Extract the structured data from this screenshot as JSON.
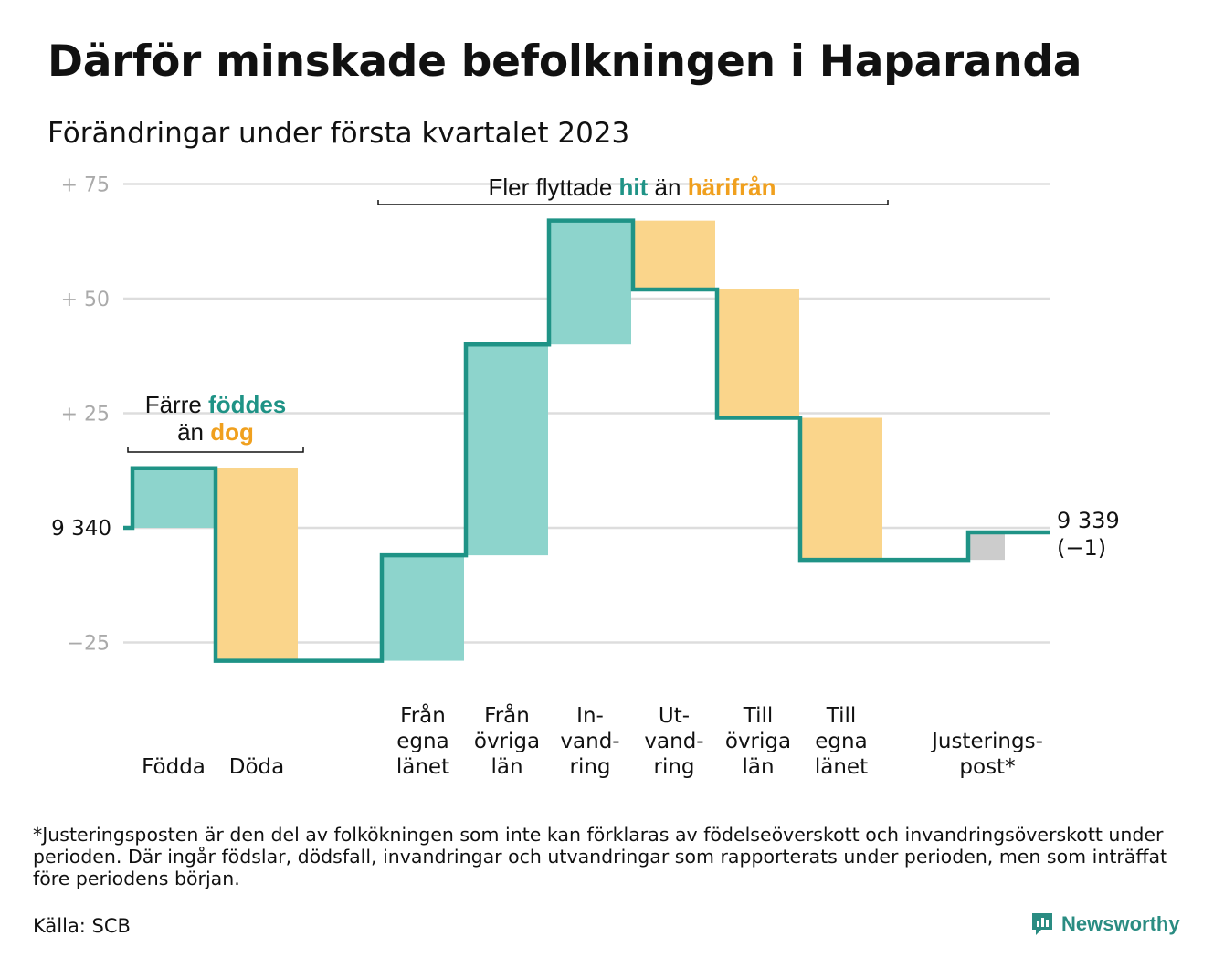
{
  "title": "Därför minskade befolkningen i Haparanda",
  "subtitle": "Förändringar under första kvartalet 2023",
  "chart_data": {
    "type": "waterfall",
    "base_population": 9340,
    "base_label": "9 340",
    "end_label_lines": [
      "9 339",
      "(−1)"
    ],
    "y_ticks": [
      {
        "value": 75,
        "label": "+ 75"
      },
      {
        "value": 50,
        "label": "+ 50"
      },
      {
        "value": 25,
        "label": "+ 25"
      },
      {
        "value": -25,
        "label": "−25"
      }
    ],
    "ylim": [
      -29,
      79
    ],
    "grid": true,
    "categories": [
      {
        "key": "fodda",
        "label_lines": [
          "Födda"
        ],
        "change": 13,
        "kind": "in"
      },
      {
        "key": "doda",
        "label_lines": [
          "Döda"
        ],
        "change": -42,
        "kind": "out"
      },
      {
        "key": "fran_egna_lanet",
        "label_lines": [
          "Från",
          "egna",
          "länet"
        ],
        "change": 23,
        "kind": "in"
      },
      {
        "key": "fran_ovriga_lan",
        "label_lines": [
          "Från",
          "övriga",
          "län"
        ],
        "change": 46,
        "kind": "in"
      },
      {
        "key": "invandring",
        "label_lines": [
          "In-",
          "vand-",
          "ring"
        ],
        "change": 27,
        "kind": "in"
      },
      {
        "key": "utvandring",
        "label_lines": [
          "Ut-",
          "vand-",
          "ring"
        ],
        "change": -15,
        "kind": "out"
      },
      {
        "key": "till_ovriga_lan",
        "label_lines": [
          "Till",
          "övriga",
          "län"
        ],
        "change": -28,
        "kind": "out"
      },
      {
        "key": "till_egna_lanet",
        "label_lines": [
          "Till",
          "egna",
          "länet"
        ],
        "change": -31,
        "kind": "out"
      },
      {
        "key": "justeringspost",
        "label_lines": [
          "Justerings-",
          "post*"
        ],
        "change": 6,
        "kind": "adjust"
      }
    ],
    "annotations": [
      {
        "key": "births_vs_deaths",
        "parts": [
          {
            "text": "Färre ",
            "style": "plain"
          },
          {
            "text": "föddes",
            "style": "in"
          },
          {
            "text": "än ",
            "style": "plain",
            "newline": true
          },
          {
            "text": "dog",
            "style": "out"
          }
        ],
        "from": "fodda",
        "to": "doda"
      },
      {
        "key": "moved_in_vs_out",
        "parts": [
          {
            "text": "Fler flyttade ",
            "style": "plain"
          },
          {
            "text": "hit",
            "style": "in"
          },
          {
            "text": " än ",
            "style": "plain"
          },
          {
            "text": "härifrån",
            "style": "out"
          }
        ],
        "from": "fran_egna_lanet",
        "to": "till_egna_lanet"
      }
    ],
    "colors": {
      "in": "#8dd4cc",
      "out": "#fad58b",
      "adjust": "#cccccc",
      "line": "#1f9386",
      "in_text": "#1f9386",
      "out_text": "#f0a01e",
      "grid": "#dddddd",
      "tick_text": "#aaaaaa"
    }
  },
  "footnote": "*Justeringsposten är den del av folkökningen som inte kan förklaras av födelseöverskott och invandringsöverskott under perioden. Där ingår födslar, dödsfall, invandringar och utvandringar som rapporterats under perioden, men som inträffat före periodens början.",
  "source": "Källa: SCB",
  "brand": {
    "name": "Newsworthy",
    "icon": "newsworthy-logo-icon"
  }
}
